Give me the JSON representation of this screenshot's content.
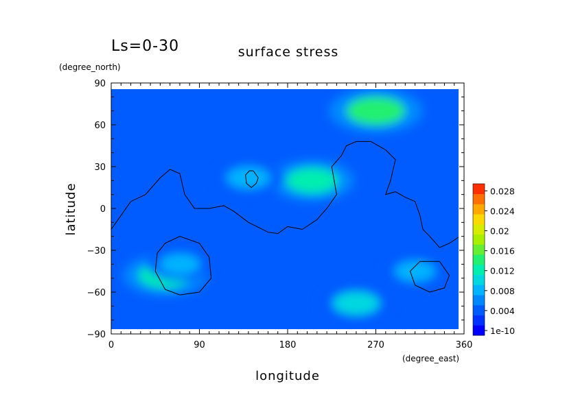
{
  "chart_data": {
    "type": "heatmap",
    "title": "surface stress",
    "subtitle": "Ls=0-30",
    "xlabel": "longitude",
    "ylabel": "latitude",
    "x_units": "(degree_east)",
    "y_units": "(degree_north)",
    "xlim": [
      0,
      360
    ],
    "ylim": [
      -90,
      90
    ],
    "x_ticks": [
      "0",
      "90",
      "180",
      "270",
      "360"
    ],
    "y_ticks": [
      "90",
      "60",
      "30",
      "0",
      "−30",
      "−60",
      "−90"
    ],
    "grid": false,
    "legend_placement": "right",
    "colorbar": {
      "labels": [
        "0.028",
        "0.024",
        "0.02",
        "0.016",
        "0.012",
        "0.008",
        "0.004",
        "1e-10"
      ],
      "levels": [
        1e-10,
        0.002,
        0.004,
        0.006,
        0.008,
        0.01,
        0.012,
        0.014,
        0.016,
        0.018,
        0.02,
        0.022,
        0.024,
        0.026,
        0.028,
        0.03
      ],
      "colors": [
        "#0000ff",
        "#0033ff",
        "#005cff",
        "#0088ff",
        "#00b4ff",
        "#00d8e0",
        "#00eeb0",
        "#22f070",
        "#66ee33",
        "#a8f000",
        "#d8ec00",
        "#ffd800",
        "#ffa800",
        "#ff7000",
        "#ff3000"
      ]
    },
    "field_features": [
      {
        "lon": 270,
        "lat": 70,
        "value": 0.014
      },
      {
        "lon": 205,
        "lat": 20,
        "value": 0.012
      },
      {
        "lon": 55,
        "lat": -48,
        "value": 0.012
      },
      {
        "lon": 250,
        "lat": -68,
        "value": 0.01
      },
      {
        "lon": 140,
        "lat": 22,
        "value": 0.009
      },
      {
        "lon": 70,
        "lat": -40,
        "value": 0.008
      },
      {
        "lon": 310,
        "lat": -45,
        "value": 0.008
      }
    ],
    "contour_lines": [
      [
        [
          0,
          -15
        ],
        [
          10,
          -5
        ],
        [
          20,
          5
        ],
        [
          35,
          10
        ],
        [
          50,
          22
        ],
        [
          60,
          28
        ],
        [
          70,
          25
        ],
        [
          75,
          10
        ],
        [
          85,
          0
        ],
        [
          100,
          0
        ],
        [
          115,
          2
        ],
        [
          125,
          -2
        ],
        [
          140,
          -10
        ],
        [
          160,
          -17
        ],
        [
          170,
          -18
        ],
        [
          180,
          -13
        ],
        [
          195,
          -15
        ],
        [
          210,
          -8
        ],
        [
          220,
          0
        ],
        [
          230,
          10
        ],
        [
          225,
          30
        ],
        [
          235,
          38
        ],
        [
          240,
          45
        ],
        [
          250,
          48
        ],
        [
          265,
          48
        ],
        [
          280,
          42
        ],
        [
          290,
          35
        ],
        [
          285,
          20
        ],
        [
          280,
          10
        ],
        [
          290,
          12
        ],
        [
          300,
          8
        ],
        [
          310,
          5
        ],
        [
          315,
          -5
        ],
        [
          318,
          -15
        ],
        [
          325,
          -20
        ],
        [
          335,
          -28
        ],
        [
          345,
          -25
        ],
        [
          360,
          -18
        ]
      ],
      [
        [
          145,
          27
        ],
        [
          150,
          22
        ],
        [
          148,
          18
        ],
        [
          143,
          15
        ],
        [
          138,
          18
        ],
        [
          137,
          24
        ],
        [
          141,
          27
        ],
        [
          145,
          27
        ]
      ],
      [
        [
          55,
          -25
        ],
        [
          70,
          -20
        ],
        [
          90,
          -25
        ],
        [
          100,
          -35
        ],
        [
          102,
          -50
        ],
        [
          90,
          -60
        ],
        [
          70,
          -62
        ],
        [
          55,
          -58
        ],
        [
          45,
          -45
        ],
        [
          47,
          -32
        ],
        [
          55,
          -25
        ]
      ],
      [
        [
          320,
          -38
        ],
        [
          335,
          -38
        ],
        [
          345,
          -48
        ],
        [
          340,
          -57
        ],
        [
          325,
          -60
        ],
        [
          310,
          -55
        ],
        [
          305,
          -45
        ],
        [
          315,
          -38
        ],
        [
          320,
          -38
        ]
      ]
    ]
  }
}
